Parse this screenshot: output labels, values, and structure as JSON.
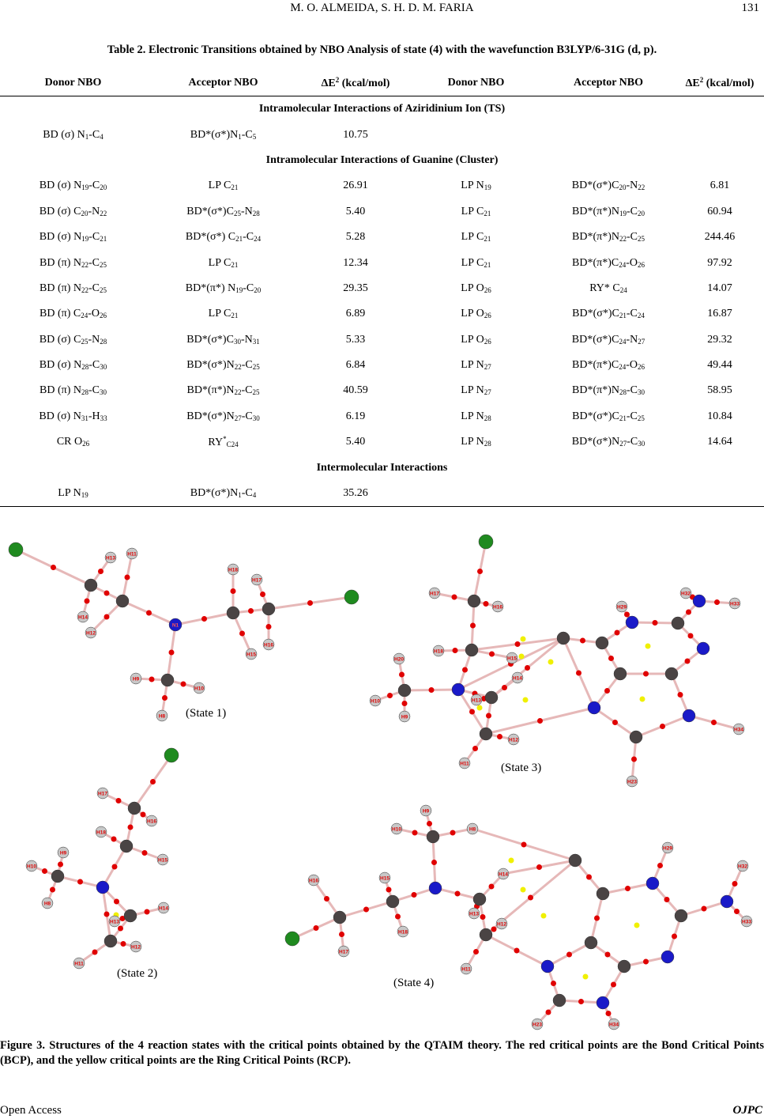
{
  "header": {
    "running_head": "M. O. ALMEIDA, S. H. D. M. FARIA",
    "page_number": "131"
  },
  "table": {
    "caption": "Table 2. Electronic Transitions obtained by NBO Analysis of state (4) with the wavefunction B3LYP/6-31G (d, p).",
    "columns": [
      "Donor NBO",
      "Acceptor NBO",
      "ΔE^{2} (kcal/mol)",
      "Donor NBO",
      "Acceptor NBO",
      "ΔE^{2} (kcal/mol)"
    ],
    "rows": [
      {
        "section": "Intramolecular Interactions of Aziridinium Ion (TS)"
      },
      {
        "cells": [
          "BD (σ) N_{1}-C_{4}",
          "BD*(σ*)N_{1}-C_{5}",
          "10.75",
          "",
          "",
          ""
        ]
      },
      {
        "section": "Intramolecular Interactions of Guanine (Cluster)"
      },
      {
        "cells": [
          "BD (σ) N_{19}-C_{20}",
          "LP C_{21}",
          "26.91",
          "LP N_{19}",
          "BD*(σ*)C_{20}-N_{22}",
          "6.81"
        ]
      },
      {
        "cells": [
          "BD (σ) C_{20}-N_{22}",
          "BD*(σ*)C_{25}-N_{28}",
          "5.40",
          "LP C_{21}",
          "BD*(π*)N_{19}-C_{20}",
          "60.94"
        ]
      },
      {
        "cells": [
          "BD (σ) N_{19}-C_{21}",
          "BD*(σ*) C_{21}-C_{24}",
          "5.28",
          "LP C_{21}",
          "BD*(π*)N_{22}-C_{25}",
          "244.46"
        ]
      },
      {
        "cells": [
          "BD (π) N_{22}-C_{25}",
          "LP C_{21}",
          "12.34",
          "LP C_{21}",
          "BD*(π*)C_{24}-O_{26}",
          "97.92"
        ]
      },
      {
        "cells": [
          "BD (π) N_{22}-C_{25}",
          "BD*(π*) N_{19}-C_{20}",
          "29.35",
          "LP O_{26}",
          "RY* C_{24}",
          "14.07"
        ]
      },
      {
        "cells": [
          "BD (π) C_{24}-O_{26}",
          "LP C_{21}",
          "6.89",
          "LP O_{26}",
          "BD*(σ*)C_{21}-C_{24}",
          "16.87"
        ]
      },
      {
        "cells": [
          "BD (σ) C_{25}-N_{28}",
          "BD*(σ*)C_{30}-N_{31}",
          "5.33",
          "LP O_{26}",
          "BD*(σ*)C_{24}-N_{27}",
          "29.32"
        ]
      },
      {
        "cells": [
          "BD (σ) N_{28}-C_{30}",
          "BD*(σ*)N_{22}-C_{25}",
          "6.84",
          "LP N_{27}",
          "BD*(π*)C_{24}-O_{26}",
          "49.44"
        ]
      },
      {
        "cells": [
          "BD (π) N_{28}-C_{30}",
          "BD*(π*)N_{22}-C_{25}",
          "40.59",
          "LP N_{27}",
          "BD*(π*)N_{28}-C_{30}",
          "58.95"
        ]
      },
      {
        "cells": [
          "BD (σ) N_{31}-H_{33}",
          "BD*(σ*)N_{27}-C_{30}",
          "6.19",
          "LP N_{28}",
          "BD*(σ*)C_{21}-C_{25}",
          "10.84"
        ]
      },
      {
        "cells": [
          "CR O_{26}",
          "RY^{*}_{C24}",
          "5.40",
          "LP N_{28}",
          "BD*(σ*)N_{27}-C_{30}",
          "14.64"
        ]
      },
      {
        "section": "Intermolecular Interactions"
      },
      {
        "cells": [
          "LP N_{19}",
          "BD*(σ*)N_{1}-C_{4}",
          "35.26",
          "",
          "",
          ""
        ]
      }
    ]
  },
  "figure": {
    "colors": {
      "chlorine": "#1f8a1f",
      "carbon": "#4a4444",
      "nitrogen": "#1a1ac8",
      "hydrogen": "#c8c8c8",
      "bond": "#e6b8b8",
      "bcp": "#e00000",
      "rcp": "#f0f000"
    },
    "states": [
      {
        "label": "(State 1)",
        "atom_labels": [
          "",
          "",
          "",
          "H13",
          "H11",
          "H14",
          "H12",
          "N1",
          "",
          "H9",
          "H10",
          "H8",
          "",
          "H18",
          "H17",
          "",
          "H15",
          "H16",
          ""
        ]
      },
      {
        "label": "(State 2)",
        "atom_labels": [
          "",
          "",
          "H17",
          "H16",
          "",
          "H18",
          "H15",
          "",
          "",
          "H9",
          "H10",
          "H8",
          "",
          "H14",
          "H13",
          "",
          "H12",
          "H11"
        ]
      },
      {
        "label": "(State 3)",
        "atom_labels": [
          "",
          "",
          "H17",
          "H16",
          "",
          "H18",
          "H15",
          "",
          "",
          "H20",
          "H10",
          "H9",
          "",
          "H14",
          "H13",
          "",
          "H12",
          "H11",
          "",
          "",
          "",
          "",
          "",
          "",
          "",
          "",
          "",
          "",
          "H34",
          "H23",
          "H29",
          "",
          "H32",
          "H33"
        ]
      },
      {
        "label": "(State 4)",
        "atom_labels": [
          "",
          "",
          "H16",
          "H17",
          "",
          "H15",
          "H18",
          "",
          "",
          "H9",
          "H10",
          "H8",
          "",
          "H14",
          "H13",
          "",
          "H12",
          "H11",
          "",
          "",
          "",
          "",
          "",
          "",
          "",
          "",
          "",
          "",
          "H23",
          "H34",
          "H29",
          "",
          "H32",
          "H33"
        ]
      }
    ],
    "caption": "Figure 3. Structures of the 4 reaction states with the critical points obtained by the QTAIM theory. The red critical points are the Bond Critical Points (BCP), and the yellow critical points are the Ring Critical Points (RCP)."
  },
  "footer": {
    "left": "Open  Access",
    "right": "OJPC"
  }
}
